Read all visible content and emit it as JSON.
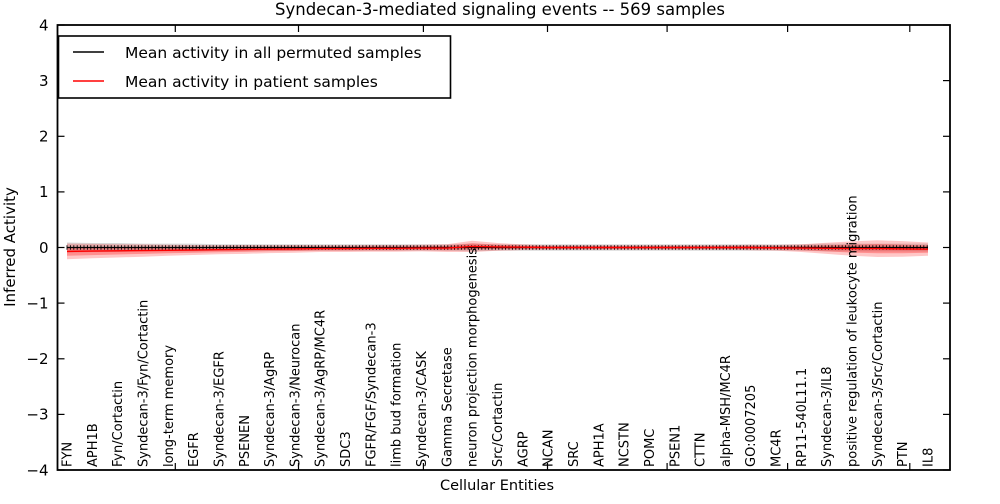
{
  "chart_data": {
    "type": "line",
    "title": "Syndecan-3-mediated signaling events -- 569 samples",
    "xlabel": "Cellular Entities",
    "ylabel": "Inferred Activity",
    "ylim": [
      -4,
      4
    ],
    "yticks": [
      4,
      3,
      2,
      1,
      0,
      -1,
      -2,
      -3,
      -4
    ],
    "grid": false,
    "legend_position": "upper-left",
    "categories": [
      "FYN",
      "APH1B",
      "Fyn/Cortactin",
      "Syndecan-3/Fyn/Cortactin",
      "long-term memory",
      "EGFR",
      "Syndecan-3/EGFR",
      "PSENEN",
      "Syndecan-3/AgRP",
      "Syndecan-3/Neurocan",
      "Syndecan-3/AgRP/MC4R",
      "SDC3",
      "FGFR/FGF/Syndecan-3",
      "limb bud formation",
      "Syndecan-3/CASK",
      "Gamma Secretase",
      "neuron projection morphogenesis",
      "Src/Cortactin",
      "AGRP",
      "NCAN",
      "SRC",
      "APH1A",
      "NCSTN",
      "POMC",
      "PSEN1",
      "CTTN",
      "alpha-MSH/MC4R",
      "GO:0007205",
      "MC4R",
      "RP11-540L11.1",
      "Syndecan-3/IL8",
      "positive regulation of leukocyte migration",
      "Syndecan-3/Src/Cortactin",
      "PTN",
      "IL8"
    ],
    "series": [
      {
        "name": "Mean activity in all permuted samples",
        "color": "#000000",
        "band_color": "#aaaaaa",
        "marker": "vertical-tick",
        "values": [
          0,
          0,
          0,
          0,
          0,
          0,
          0,
          0,
          0,
          0,
          0,
          0,
          0,
          0,
          0,
          0,
          0,
          0,
          0,
          0,
          0,
          0,
          0,
          0,
          0,
          0,
          0,
          0,
          0,
          0,
          0,
          0,
          0,
          0,
          0
        ],
        "band_halfwidth": [
          0.09,
          0.08,
          0.08,
          0.07,
          0.07,
          0.07,
          0.06,
          0.06,
          0.06,
          0.06,
          0.06,
          0.06,
          0.06,
          0.06,
          0.06,
          0.06,
          0.07,
          0.06,
          0.06,
          0.06,
          0.06,
          0.06,
          0.06,
          0.06,
          0.06,
          0.06,
          0.06,
          0.06,
          0.06,
          0.06,
          0.07,
          0.07,
          0.07,
          0.07,
          0.07
        ]
      },
      {
        "name": "Mean activity in patient samples",
        "color": "#ff0000",
        "band_color": "#ff0000",
        "marker": "none",
        "values": [
          -0.07,
          -0.065,
          -0.06,
          -0.055,
          -0.05,
          -0.045,
          -0.04,
          -0.035,
          -0.03,
          -0.025,
          -0.02,
          -0.02,
          -0.015,
          -0.015,
          -0.01,
          -0.01,
          0.02,
          0.01,
          0.005,
          0,
          0,
          0,
          0,
          0,
          0,
          0,
          0,
          0,
          -0.005,
          -0.01,
          -0.015,
          -0.02,
          -0.02,
          -0.025,
          -0.03
        ],
        "band_halfwidth": [
          0.14,
          0.13,
          0.12,
          0.11,
          0.1,
          0.09,
          0.08,
          0.08,
          0.07,
          0.07,
          0.06,
          0.06,
          0.06,
          0.06,
          0.06,
          0.07,
          0.1,
          0.07,
          0.05,
          0.04,
          0.04,
          0.04,
          0.04,
          0.04,
          0.04,
          0.04,
          0.04,
          0.05,
          0.05,
          0.07,
          0.1,
          0.13,
          0.15,
          0.14,
          0.12
        ]
      }
    ]
  }
}
